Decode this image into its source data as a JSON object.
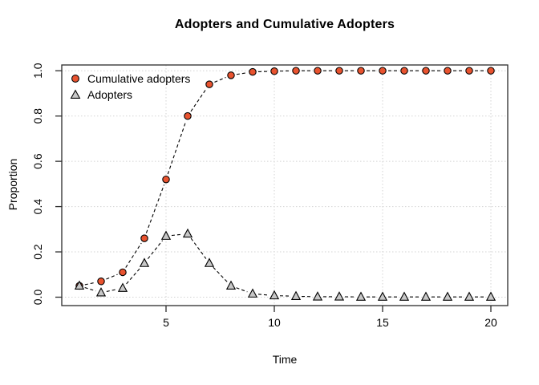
{
  "figure": {
    "title": "Adopters and Cumulative Adopters",
    "x_label": "Time",
    "y_label": "Proportion"
  },
  "legend": {
    "position": "top-left",
    "items": [
      {
        "label": "Cumulative adopters",
        "marker": "circle-icon",
        "color": "#E9532F"
      },
      {
        "label": "Adopters",
        "marker": "triangle-icon",
        "color": "#C8C8C8"
      }
    ]
  },
  "colors": {
    "background": "#FFFFFF",
    "axis_box": "#2B2B2B",
    "gridline": "#D3D3D3",
    "line": "#000000",
    "marker_stroke": "#000000",
    "cumulative_fill": "#E9532F",
    "adopters_fill": "#C8C8C8"
  },
  "chart_data": {
    "type": "line",
    "title": "Adopters and Cumulative Adopters",
    "xlabel": "Time",
    "ylabel": "Proportion",
    "x": [
      1,
      2,
      3,
      4,
      5,
      6,
      7,
      8,
      9,
      10,
      11,
      12,
      13,
      14,
      15,
      16,
      17,
      18,
      19,
      20
    ],
    "series": [
      {
        "name": "Cumulative adopters",
        "marker": "circle",
        "marker_color": "#E9532F",
        "line_color": "#000000",
        "line_style": "dashed",
        "values": [
          0.05,
          0.07,
          0.11,
          0.26,
          0.52,
          0.8,
          0.94,
          0.98,
          0.995,
          0.998,
          1.0,
          1.0,
          1.0,
          1.0,
          1.0,
          1.0,
          1.0,
          1.0,
          1.0,
          1.0
        ]
      },
      {
        "name": "Adopters",
        "marker": "triangle",
        "marker_color": "#C8C8C8",
        "line_color": "#000000",
        "line_style": "dashed",
        "values": [
          0.05,
          0.02,
          0.04,
          0.15,
          0.27,
          0.28,
          0.15,
          0.05,
          0.015,
          0.007,
          0.004,
          0.002,
          0.002,
          0.001,
          0.001,
          0.001,
          0.001,
          0.001,
          0.001,
          0.001
        ]
      }
    ],
    "x_ticks": [
      5,
      10,
      15,
      20
    ],
    "y_ticks": [
      0,
      0.2,
      0.4,
      0.6,
      0.8,
      1.0
    ],
    "y_tick_labels": [
      "0.0",
      "0.2",
      "0.4",
      "0.6",
      "0.8",
      "1.0"
    ],
    "xlim": [
      1,
      20
    ],
    "ylim": [
      0,
      1
    ],
    "grid": "dotted",
    "legend_position": "top-left"
  }
}
